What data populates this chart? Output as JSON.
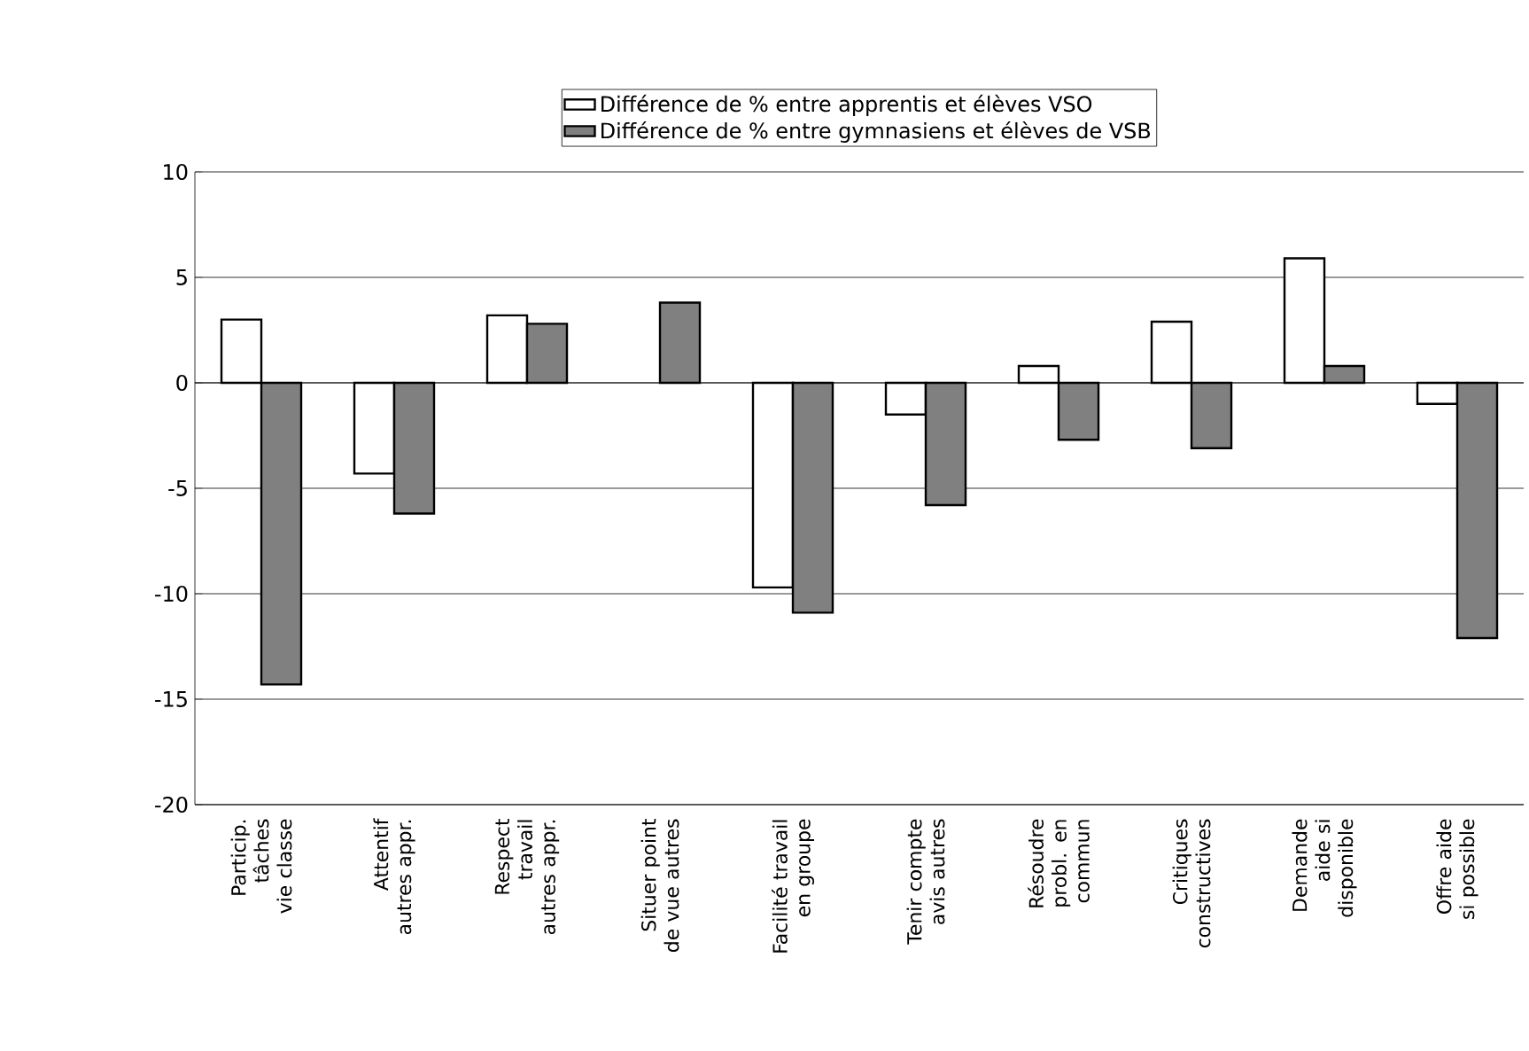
{
  "chart_data": {
    "type": "bar",
    "categories": [
      "Particip. tâches vie classe",
      "Attentif autres appr.",
      "Respect travail autres appr.",
      "Situer point de vue autres",
      "Facilité travail en groupe",
      "Tenir compte avis autres",
      "Résoudre probl. en commun",
      "Critiques constructives",
      "Demande aide si disponible",
      "Offre aide si possible"
    ],
    "series": [
      {
        "name": "Différence de % entre apprentis et élèves VSO",
        "color": "#ffffff",
        "values": [
          3.0,
          -4.3,
          3.2,
          null,
          -9.7,
          -1.5,
          0.8,
          2.9,
          5.9,
          -1.0
        ]
      },
      {
        "name": "Différence de % entre gymnasiens et élèves de VSB",
        "color": "#808080",
        "values": [
          -14.3,
          -6.2,
          2.8,
          3.8,
          -10.9,
          -5.8,
          -2.7,
          -3.1,
          0.8,
          -12.1
        ]
      }
    ],
    "ylim": [
      -20,
      10
    ],
    "yticks": [
      -20,
      -15,
      -10,
      -5,
      0,
      5,
      10
    ],
    "grid": "y",
    "legend": "top"
  }
}
